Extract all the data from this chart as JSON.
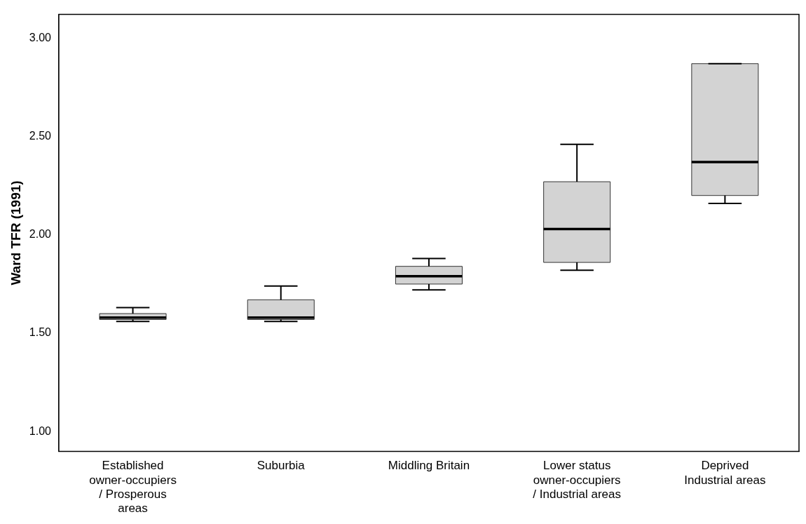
{
  "chart_data": {
    "type": "box",
    "ylabel": "Ward TFR (1991)",
    "categories": [
      "Established\nowner-occupiers\n/ Prosperous\nareas",
      "Suburbia",
      "Middling Britain",
      "Lower status\nowner-occupiers\n/ Industrial areas",
      "Deprived\nIndustrial areas"
    ],
    "boxes": [
      {
        "low": 1.56,
        "q1": 1.57,
        "median": 1.58,
        "q3": 1.6,
        "high": 1.63
      },
      {
        "low": 1.56,
        "q1": 1.57,
        "median": 1.58,
        "q3": 1.67,
        "high": 1.74
      },
      {
        "low": 1.72,
        "q1": 1.75,
        "median": 1.79,
        "q3": 1.84,
        "high": 1.88
      },
      {
        "low": 1.82,
        "q1": 1.86,
        "median": 2.03,
        "q3": 2.27,
        "high": 2.46
      },
      {
        "low": 2.16,
        "q1": 2.2,
        "median": 2.37,
        "q3": 2.87,
        "high": 2.87
      }
    ],
    "color": "#d3d3d3",
    "ylim": [
      0.9,
      3.12
    ],
    "yticks": [
      {
        "value": 1,
        "label": "1.00"
      },
      {
        "value": 1.5,
        "label": "1.50"
      },
      {
        "value": 2,
        "label": "2.00"
      },
      {
        "value": 2.5,
        "label": "2.50"
      },
      {
        "value": 3,
        "label": "3.00"
      }
    ],
    "grid": false,
    "legend": false
  }
}
